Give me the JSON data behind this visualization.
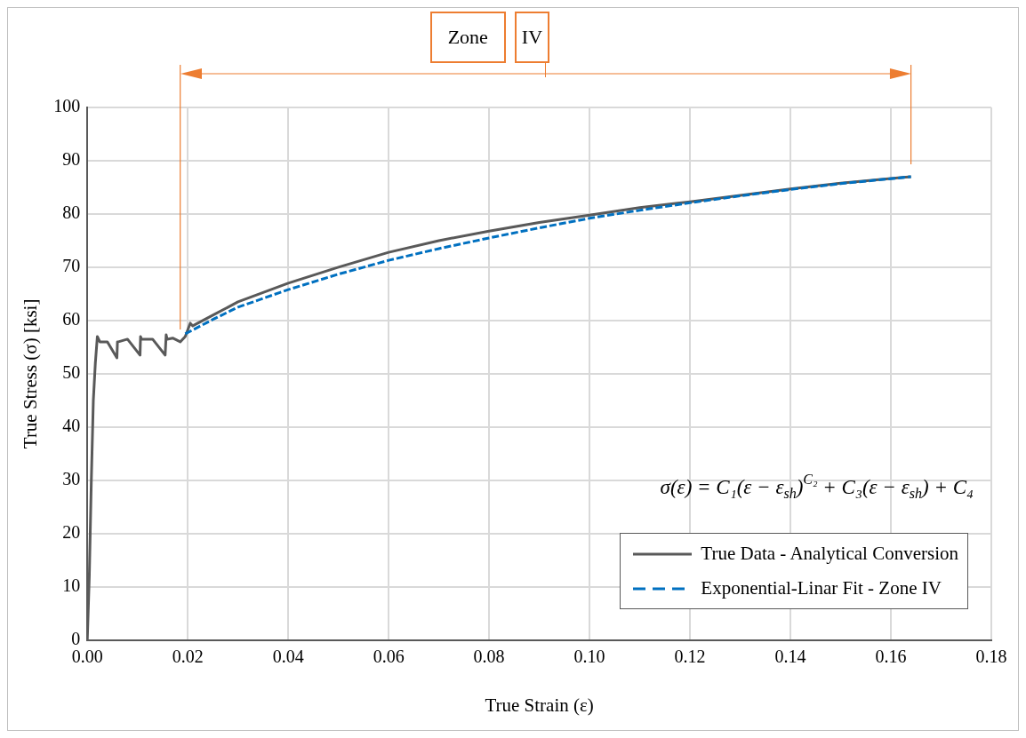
{
  "chart_data": {
    "type": "line",
    "xlabel": "True Strain (ε)",
    "ylabel": "True Stress (σ) [ksi]",
    "xlim": [
      0,
      0.18
    ],
    "xticks": [
      {
        "value": 0,
        "label": "0.00"
      },
      {
        "value": 0.02,
        "label": "0.02"
      },
      {
        "value": 0.04,
        "label": "0.04"
      },
      {
        "value": 0.06,
        "label": "0.06"
      },
      {
        "value": 0.08,
        "label": "0.08"
      },
      {
        "value": 0.1,
        "label": "0.10"
      },
      {
        "value": 0.12,
        "label": "0.12"
      },
      {
        "value": 0.14,
        "label": "0.14"
      },
      {
        "value": 0.16,
        "label": "0.16"
      },
      {
        "value": 0.18,
        "label": "0.18"
      }
    ],
    "ylim": [
      0,
      100
    ],
    "yticks": [
      0,
      10,
      20,
      30,
      40,
      50,
      60,
      70,
      80,
      90,
      100
    ],
    "grid": true,
    "legend": "bottom right",
    "marker": "none",
    "series": [
      {
        "name": "True Data - Analytical Conversion",
        "color": "#595959",
        "line_style": "solid",
        "x": [
          0,
          0.0004,
          0.0008,
          0.0012,
          0.0016,
          0.002,
          0.0025,
          0.004,
          0.0059,
          0.006,
          0.0062,
          0.008,
          0.0105,
          0.0106,
          0.0108,
          0.013,
          0.0155,
          0.0157,
          0.0159,
          0.017,
          0.0185,
          0.0195,
          0.0205,
          0.021,
          0.025,
          0.03,
          0.04,
          0.05,
          0.06,
          0.07,
          0.08,
          0.09,
          0.1,
          0.11,
          0.12,
          0.13,
          0.14,
          0.15,
          0.164
        ],
        "values": [
          0,
          12,
          30,
          45,
          52,
          57,
          56,
          56,
          53,
          56,
          56,
          56.5,
          53.5,
          57,
          56.5,
          56.5,
          53.5,
          57.3,
          56.5,
          56.7,
          56,
          57,
          59.5,
          59,
          61,
          63.5,
          67,
          70,
          72.8,
          75,
          76.8,
          78.4,
          79.8,
          81.2,
          82.3,
          83.5,
          84.7,
          85.8,
          87
        ]
      },
      {
        "name": "Exponential-Linar Fit - Zone IV",
        "color": "#0070c0",
        "line_style": "dashed",
        "x": [
          0.0195,
          0.025,
          0.03,
          0.04,
          0.05,
          0.06,
          0.07,
          0.08,
          0.09,
          0.1,
          0.11,
          0.12,
          0.13,
          0.14,
          0.15,
          0.164
        ],
        "values": [
          57.5,
          60.2,
          62.5,
          65.8,
          68.7,
          71.3,
          73.5,
          75.5,
          77.4,
          79.2,
          80.7,
          82.1,
          83.4,
          84.6,
          85.7,
          87
        ]
      }
    ],
    "ref_lines": [
      {
        "axis": "x",
        "value": 0.0185,
        "color": "#ed7d31"
      },
      {
        "axis": "x",
        "value": 0.164,
        "color": "#ed7d31"
      }
    ],
    "annotations": [
      "Zone",
      "IV",
      "σ(ε) = C₁(ε − ε$_{sh}$)$^{C₂}$ + C₃(ε − ε$_{sh}$) + C₄"
    ]
  }
}
